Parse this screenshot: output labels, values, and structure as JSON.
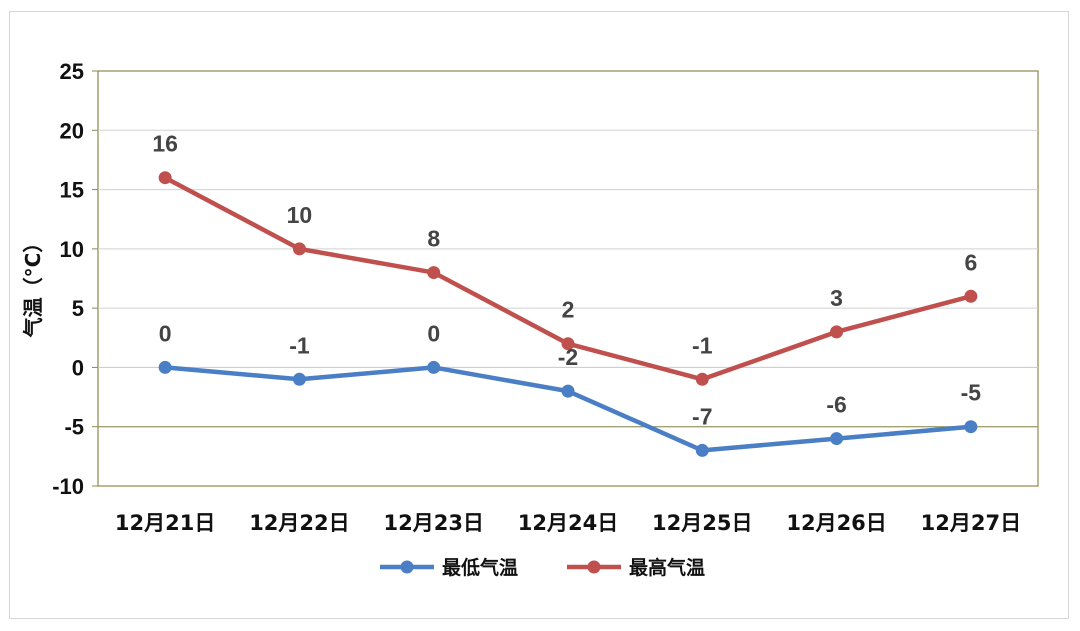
{
  "chart_data": {
    "type": "line",
    "title": "",
    "xlabel": "",
    "ylabel": "气温（°C）",
    "categories": [
      "12月21日",
      "12月22日",
      "12月23日",
      "12月24日",
      "12月25日",
      "12月26日",
      "12月27日"
    ],
    "series": [
      {
        "name": "最低气温",
        "color": "#4a7ec5",
        "values": [
          0,
          -1,
          0,
          -2,
          -7,
          -6,
          -5
        ]
      },
      {
        "name": "最高气温",
        "color": "#c0504d",
        "values": [
          16,
          10,
          8,
          2,
          -1,
          3,
          6
        ]
      }
    ],
    "ylim": [
      -10,
      25
    ],
    "yticks": [
      "-10",
      "-5",
      "0",
      "5",
      "10",
      "15",
      "20",
      "25"
    ],
    "grid": true,
    "legend": "bottom"
  }
}
